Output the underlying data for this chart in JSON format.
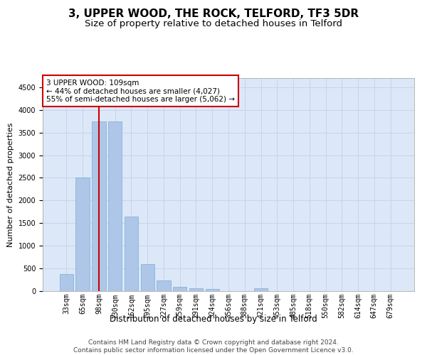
{
  "title": "3, UPPER WOOD, THE ROCK, TELFORD, TF3 5DR",
  "subtitle": "Size of property relative to detached houses in Telford",
  "xlabel": "Distribution of detached houses by size in Telford",
  "ylabel": "Number of detached properties",
  "categories": [
    "33sqm",
    "65sqm",
    "98sqm",
    "130sqm",
    "162sqm",
    "195sqm",
    "227sqm",
    "259sqm",
    "291sqm",
    "324sqm",
    "356sqm",
    "388sqm",
    "421sqm",
    "453sqm",
    "485sqm",
    "518sqm",
    "550sqm",
    "582sqm",
    "614sqm",
    "647sqm",
    "679sqm"
  ],
  "values": [
    375,
    2500,
    3750,
    3750,
    1640,
    600,
    240,
    100,
    60,
    50,
    0,
    0,
    60,
    0,
    0,
    0,
    0,
    0,
    0,
    0,
    0
  ],
  "bar_color": "#aec6e8",
  "bar_edge_color": "#7aafd4",
  "vline_x": 2,
  "vline_color": "#cc0000",
  "annotation_text": "3 UPPER WOOD: 109sqm\n← 44% of detached houses are smaller (4,027)\n55% of semi-detached houses are larger (5,062) →",
  "annotation_box_color": "#ffffff",
  "annotation_box_edge": "#cc0000",
  "ylim": [
    0,
    4700
  ],
  "yticks": [
    0,
    500,
    1000,
    1500,
    2000,
    2500,
    3000,
    3500,
    4000,
    4500
  ],
  "grid_color": "#c8d4e8",
  "background_color": "#dce8f8",
  "footer_text": "Contains HM Land Registry data © Crown copyright and database right 2024.\nContains public sector information licensed under the Open Government Licence v3.0.",
  "title_fontsize": 11,
  "subtitle_fontsize": 9.5,
  "xlabel_fontsize": 8.5,
  "ylabel_fontsize": 8,
  "tick_fontsize": 7,
  "footer_fontsize": 6.5,
  "annot_fontsize": 7.5
}
